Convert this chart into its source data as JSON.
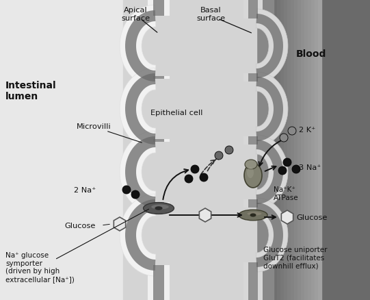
{
  "figsize": [
    5.41,
    4.39
  ],
  "dpi": 100,
  "bg_left": "#e8e8e8",
  "bg_right": "#5a5a5a",
  "bg_mid": "#d0d0d0",
  "label_apical": "Apical\nsurface",
  "label_basal": "Basal\nsurface",
  "label_intestinal": "Intestinal\nlumen",
  "label_blood": "Blood",
  "label_microvilli": "Microvilli",
  "label_epithelial": "Epithelial cell",
  "label_2na": "2 Na⁺",
  "label_glucose_l": "Glucose",
  "label_symporter": "Na⁺ glucose\nsymporter\n(driven by high\nextracellular [Na⁺])",
  "label_2k": "2 K⁺",
  "label_3na": "3 Na⁺",
  "label_atpase": "Na⁺K⁺\nATPase",
  "label_glucose_r": "Glucose",
  "label_uniporter": "Glucose uniporter\nGluT2 (facilitates\ndownhill efflux)"
}
